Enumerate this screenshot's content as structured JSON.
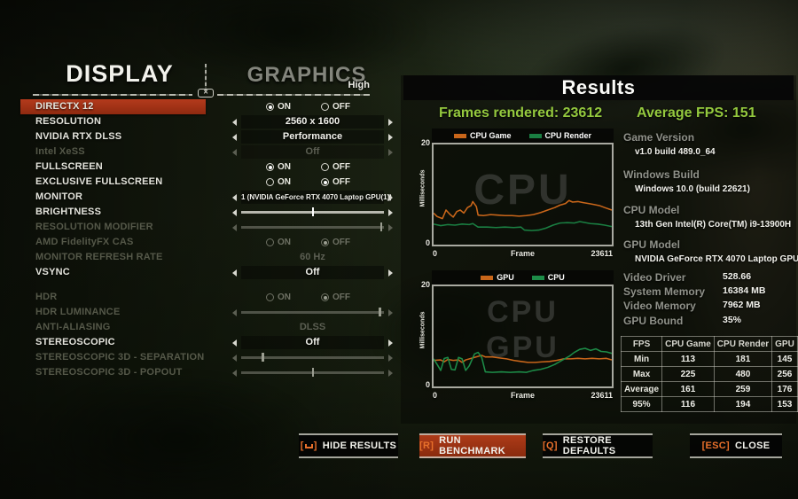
{
  "colors": {
    "accent_red": "#a93418",
    "accent_orange": "#e8702b",
    "green_text": "#94c93e",
    "cpu_game_orange": "#c9661a",
    "cpu_render_green": "#1a7f42"
  },
  "left_panel": {
    "display_title": "DISPLAY",
    "graphics_title": "GRAPHICS",
    "preset_label": "High",
    "on_label": "ON",
    "off_label": "OFF",
    "rows": [
      {
        "label": "DIRECTX 12",
        "enabled": true,
        "highlight": true,
        "control": {
          "type": "radio",
          "selected": "on"
        }
      },
      {
        "label": "RESOLUTION",
        "enabled": true,
        "control": {
          "type": "selector",
          "value": "2560 x 1600"
        }
      },
      {
        "label": "NVIDIA RTX DLSS",
        "enabled": true,
        "control": {
          "type": "selector",
          "value": "Performance"
        }
      },
      {
        "label": "Intel XeSS",
        "enabled": false,
        "control": {
          "type": "selector",
          "value": "Off"
        }
      },
      {
        "label": "FULLSCREEN",
        "enabled": true,
        "control": {
          "type": "radio",
          "selected": "on"
        }
      },
      {
        "label": "EXCLUSIVE FULLSCREEN",
        "enabled": true,
        "control": {
          "type": "radio",
          "selected": "off"
        }
      },
      {
        "label": "MONITOR",
        "enabled": true,
        "control": {
          "type": "selector",
          "value": "1 (NVIDIA GeForce RTX 4070 Laptop GPU(1))",
          "small": true
        }
      },
      {
        "label": "BRIGHTNESS",
        "enabled": true,
        "control": {
          "type": "slider",
          "pos": 0.5
        }
      },
      {
        "label": "RESOLUTION MODIFIER",
        "enabled": false,
        "control": {
          "type": "slider",
          "pos": 0.98
        }
      },
      {
        "label": "AMD FidelityFX CAS",
        "enabled": false,
        "control": {
          "type": "radio",
          "selected": "off"
        }
      },
      {
        "label": "MONITOR REFRESH RATE",
        "enabled": false,
        "control": {
          "type": "text",
          "value": "60 Hz"
        }
      },
      {
        "label": "VSYNC",
        "enabled": true,
        "control": {
          "type": "selector",
          "value": "Off"
        }
      },
      {
        "label": "HDR",
        "enabled": false,
        "gap": true,
        "control": {
          "type": "radio",
          "selected": "off"
        }
      },
      {
        "label": "HDR LUMINANCE",
        "enabled": false,
        "control": {
          "type": "slider",
          "pos": 0.97
        }
      },
      {
        "label": "ANTI-ALIASING",
        "enabled": false,
        "control": {
          "type": "text",
          "value": "DLSS"
        }
      },
      {
        "label": "STEREOSCOPIC",
        "enabled": true,
        "control": {
          "type": "selector",
          "value": "Off"
        }
      },
      {
        "label": "STEREOSCOPIC 3D - SEPARATION",
        "enabled": false,
        "control": {
          "type": "slider",
          "pos": 0.15
        }
      },
      {
        "label": "STEREOSCOPIC 3D - POPOUT",
        "enabled": false,
        "control": {
          "type": "slider",
          "pos": 0.5
        }
      }
    ]
  },
  "results": {
    "title": "Results",
    "frames_rendered": "Frames rendered: 23612",
    "average_fps": "Average FPS: 151",
    "info": [
      {
        "label": "Game Version",
        "value": "v1.0 build 489.0_64"
      },
      {
        "label": "Windows Build",
        "value": "Windows 10.0 (build 22621)"
      },
      {
        "label": "CPU Model",
        "value": "13th Gen Intel(R) Core(TM) i9-13900H"
      },
      {
        "label": "GPU Model",
        "value": "NVIDIA GeForce RTX 4070 Laptop GPU"
      }
    ],
    "stats": [
      {
        "label": "Video Driver",
        "value": "528.66"
      },
      {
        "label": "System Memory",
        "value": "16384 MB"
      },
      {
        "label": "Video Memory",
        "value": "7962 MB"
      },
      {
        "label": "GPU Bound",
        "value": "35%"
      }
    ],
    "table": {
      "headers": [
        "FPS",
        "CPU Game",
        "CPU Render",
        "GPU"
      ],
      "rows": [
        {
          "label": "Min",
          "values": [
            113,
            181,
            145
          ]
        },
        {
          "label": "Max",
          "values": [
            225,
            480,
            256
          ]
        },
        {
          "label": "Average",
          "values": [
            161,
            259,
            176
          ]
        },
        {
          "label": "95%",
          "values": [
            116,
            194,
            153
          ]
        }
      ]
    }
  },
  "chart_data": [
    {
      "type": "line",
      "xlabel": "Frame",
      "ylabel": "Milliseconds",
      "xlim": [
        0,
        23611
      ],
      "ylim": [
        0,
        20
      ],
      "x_ticks": [
        "0",
        "23611"
      ],
      "y_ticks": [
        "20",
        "0"
      ],
      "watermarks": [
        "CPU"
      ],
      "legend_position": "top",
      "grid": false,
      "series": [
        {
          "name": "CPU Game",
          "color": "#c9661a",
          "x": [
            0,
            470,
            1180,
            1650,
            2130,
            2600,
            3070,
            3540,
            4010,
            4490,
            4960,
            5190,
            5670,
            5900,
            6610,
            7560,
            8500,
            9440,
            10390,
            11330,
            12280,
            13220,
            14170,
            15110,
            16060,
            16760,
            17470,
            17940,
            18420,
            19120,
            19830,
            20540,
            21250,
            21960,
            22670,
            23611
          ],
          "y": [
            6.3,
            5.6,
            5.2,
            6.9,
            6.1,
            5.5,
            6.6,
            6.9,
            6.3,
            7.4,
            7.8,
            8.6,
            7.6,
            5.9,
            5.8,
            6.0,
            5.9,
            5.8,
            5.8,
            5.7,
            5.8,
            6.0,
            6.4,
            6.9,
            7.4,
            7.9,
            8.2,
            8.8,
            8.5,
            8.6,
            8.4,
            8.2,
            8.0,
            7.8,
            7.4,
            6.9
          ]
        },
        {
          "name": "CPU Render",
          "color": "#1a7f42",
          "x": [
            0,
            940,
            1890,
            2830,
            3780,
            4720,
            5190,
            5900,
            7080,
            8260,
            9440,
            10620,
            11570,
            12040,
            12990,
            13930,
            14880,
            15820,
            16760,
            17710,
            18650,
            19360,
            20070,
            20780,
            21720,
            22670,
            23611
          ],
          "y": [
            4.1,
            3.8,
            4.0,
            3.9,
            4.1,
            4.0,
            4.2,
            3.5,
            3.5,
            3.4,
            3.5,
            3.4,
            3.5,
            2.9,
            2.8,
            2.9,
            3.3,
            3.9,
            4.3,
            4.4,
            4.3,
            4.6,
            4.4,
            4.2,
            4.1,
            3.9,
            3.6
          ]
        }
      ]
    },
    {
      "type": "line",
      "xlabel": "Frame",
      "ylabel": "Milliseconds",
      "xlim": [
        0,
        23611
      ],
      "ylim": [
        0,
        20
      ],
      "x_ticks": [
        "0",
        "23611"
      ],
      "y_ticks": [
        "20",
        "0"
      ],
      "watermarks": [
        "CPU",
        "GPU"
      ],
      "legend_position": "top",
      "grid": false,
      "series": [
        {
          "name": "GPU",
          "color": "#c9661a",
          "x": [
            0,
            940,
            1420,
            1890,
            2600,
            3310,
            3780,
            4250,
            4960,
            5670,
            6380,
            6850,
            7790,
            8740,
            9680,
            10620,
            11570,
            12510,
            13460,
            14400,
            15350,
            16290,
            17240,
            18180,
            19120,
            20070,
            21010,
            21960,
            22900,
            23611
          ],
          "y": [
            5.2,
            5.3,
            4.9,
            5.4,
            5.2,
            5.3,
            4.8,
            5.3,
            5.6,
            5.9,
            6.2,
            5.9,
            5.9,
            5.7,
            5.5,
            5.2,
            5.0,
            4.8,
            4.8,
            4.9,
            5.0,
            5.2,
            5.5,
            5.5,
            5.6,
            5.5,
            5.6,
            5.5,
            5.6,
            5.3
          ]
        },
        {
          "name": "CPU",
          "color": "#1d8c48",
          "x": [
            0,
            470,
            940,
            1420,
            1890,
            2360,
            2830,
            3310,
            3780,
            4250,
            4720,
            5430,
            5900,
            6380,
            6850,
            7790,
            8970,
            10150,
            11330,
            12280,
            13220,
            14170,
            15110,
            16060,
            17000,
            17940,
            18650,
            19360,
            20070,
            20780,
            21490,
            22190,
            22900,
            23611
          ],
          "y": [
            5.5,
            4.4,
            3.2,
            5.6,
            5.8,
            3.4,
            3.3,
            5.8,
            5.5,
            3.2,
            4.1,
            6.5,
            6.8,
            5.8,
            2.9,
            2.8,
            2.9,
            2.8,
            2.9,
            2.8,
            3.2,
            3.4,
            3.8,
            4.4,
            5.2,
            6.0,
            6.8,
            7.4,
            7.6,
            7.2,
            7.5,
            7.0,
            6.9,
            6.6
          ]
        }
      ]
    }
  ],
  "footer": {
    "buttons": [
      {
        "key": "SPACE",
        "label": "HIDE RESULTS",
        "highlight": false
      },
      {
        "key": "R",
        "label": "RUN BENCHMARK",
        "highlight": true
      },
      {
        "key": "Q",
        "label": "RESTORE DEFAULTS",
        "highlight": false
      },
      {
        "key": "ESC",
        "label": "CLOSE",
        "highlight": false
      }
    ]
  }
}
